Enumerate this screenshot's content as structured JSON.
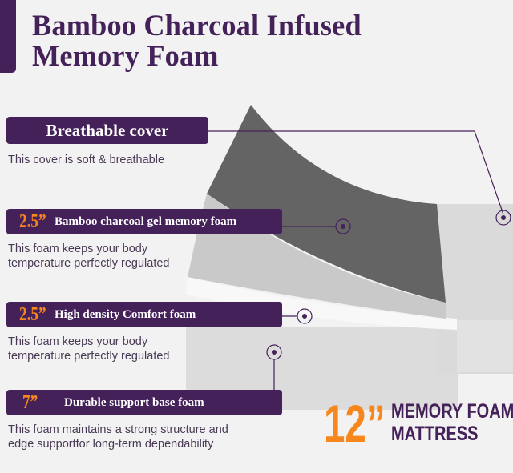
{
  "title": {
    "line1": "Bamboo Charcoal Infused",
    "line2": "Memory Foam"
  },
  "colors": {
    "brand_purple": "#45215a",
    "accent_orange": "#f7861c",
    "background": "#f2f2f2"
  },
  "layers": [
    {
      "thickness": "",
      "label": "Breathable cover",
      "description": [
        "This cover is soft & breathable"
      ]
    },
    {
      "thickness": "2.5”",
      "label": "Bamboo charcoal gel  memory foam",
      "description": [
        "This foam keeps your body",
        "temperature perfectly regulated"
      ]
    },
    {
      "thickness": "2.5”",
      "label": "High density Comfort foam",
      "description": [
        "This foam keeps your body",
        "temperature perfectly regulated"
      ]
    },
    {
      "thickness": "7”",
      "label": "Durable support base foam",
      "description": [
        "This foam maintains a strong structure and",
        "edge supportfor long-term dependability"
      ]
    }
  ],
  "total": {
    "thickness": "12”",
    "line1": "MEMORY FOAM",
    "line2": "MATTRESS"
  }
}
